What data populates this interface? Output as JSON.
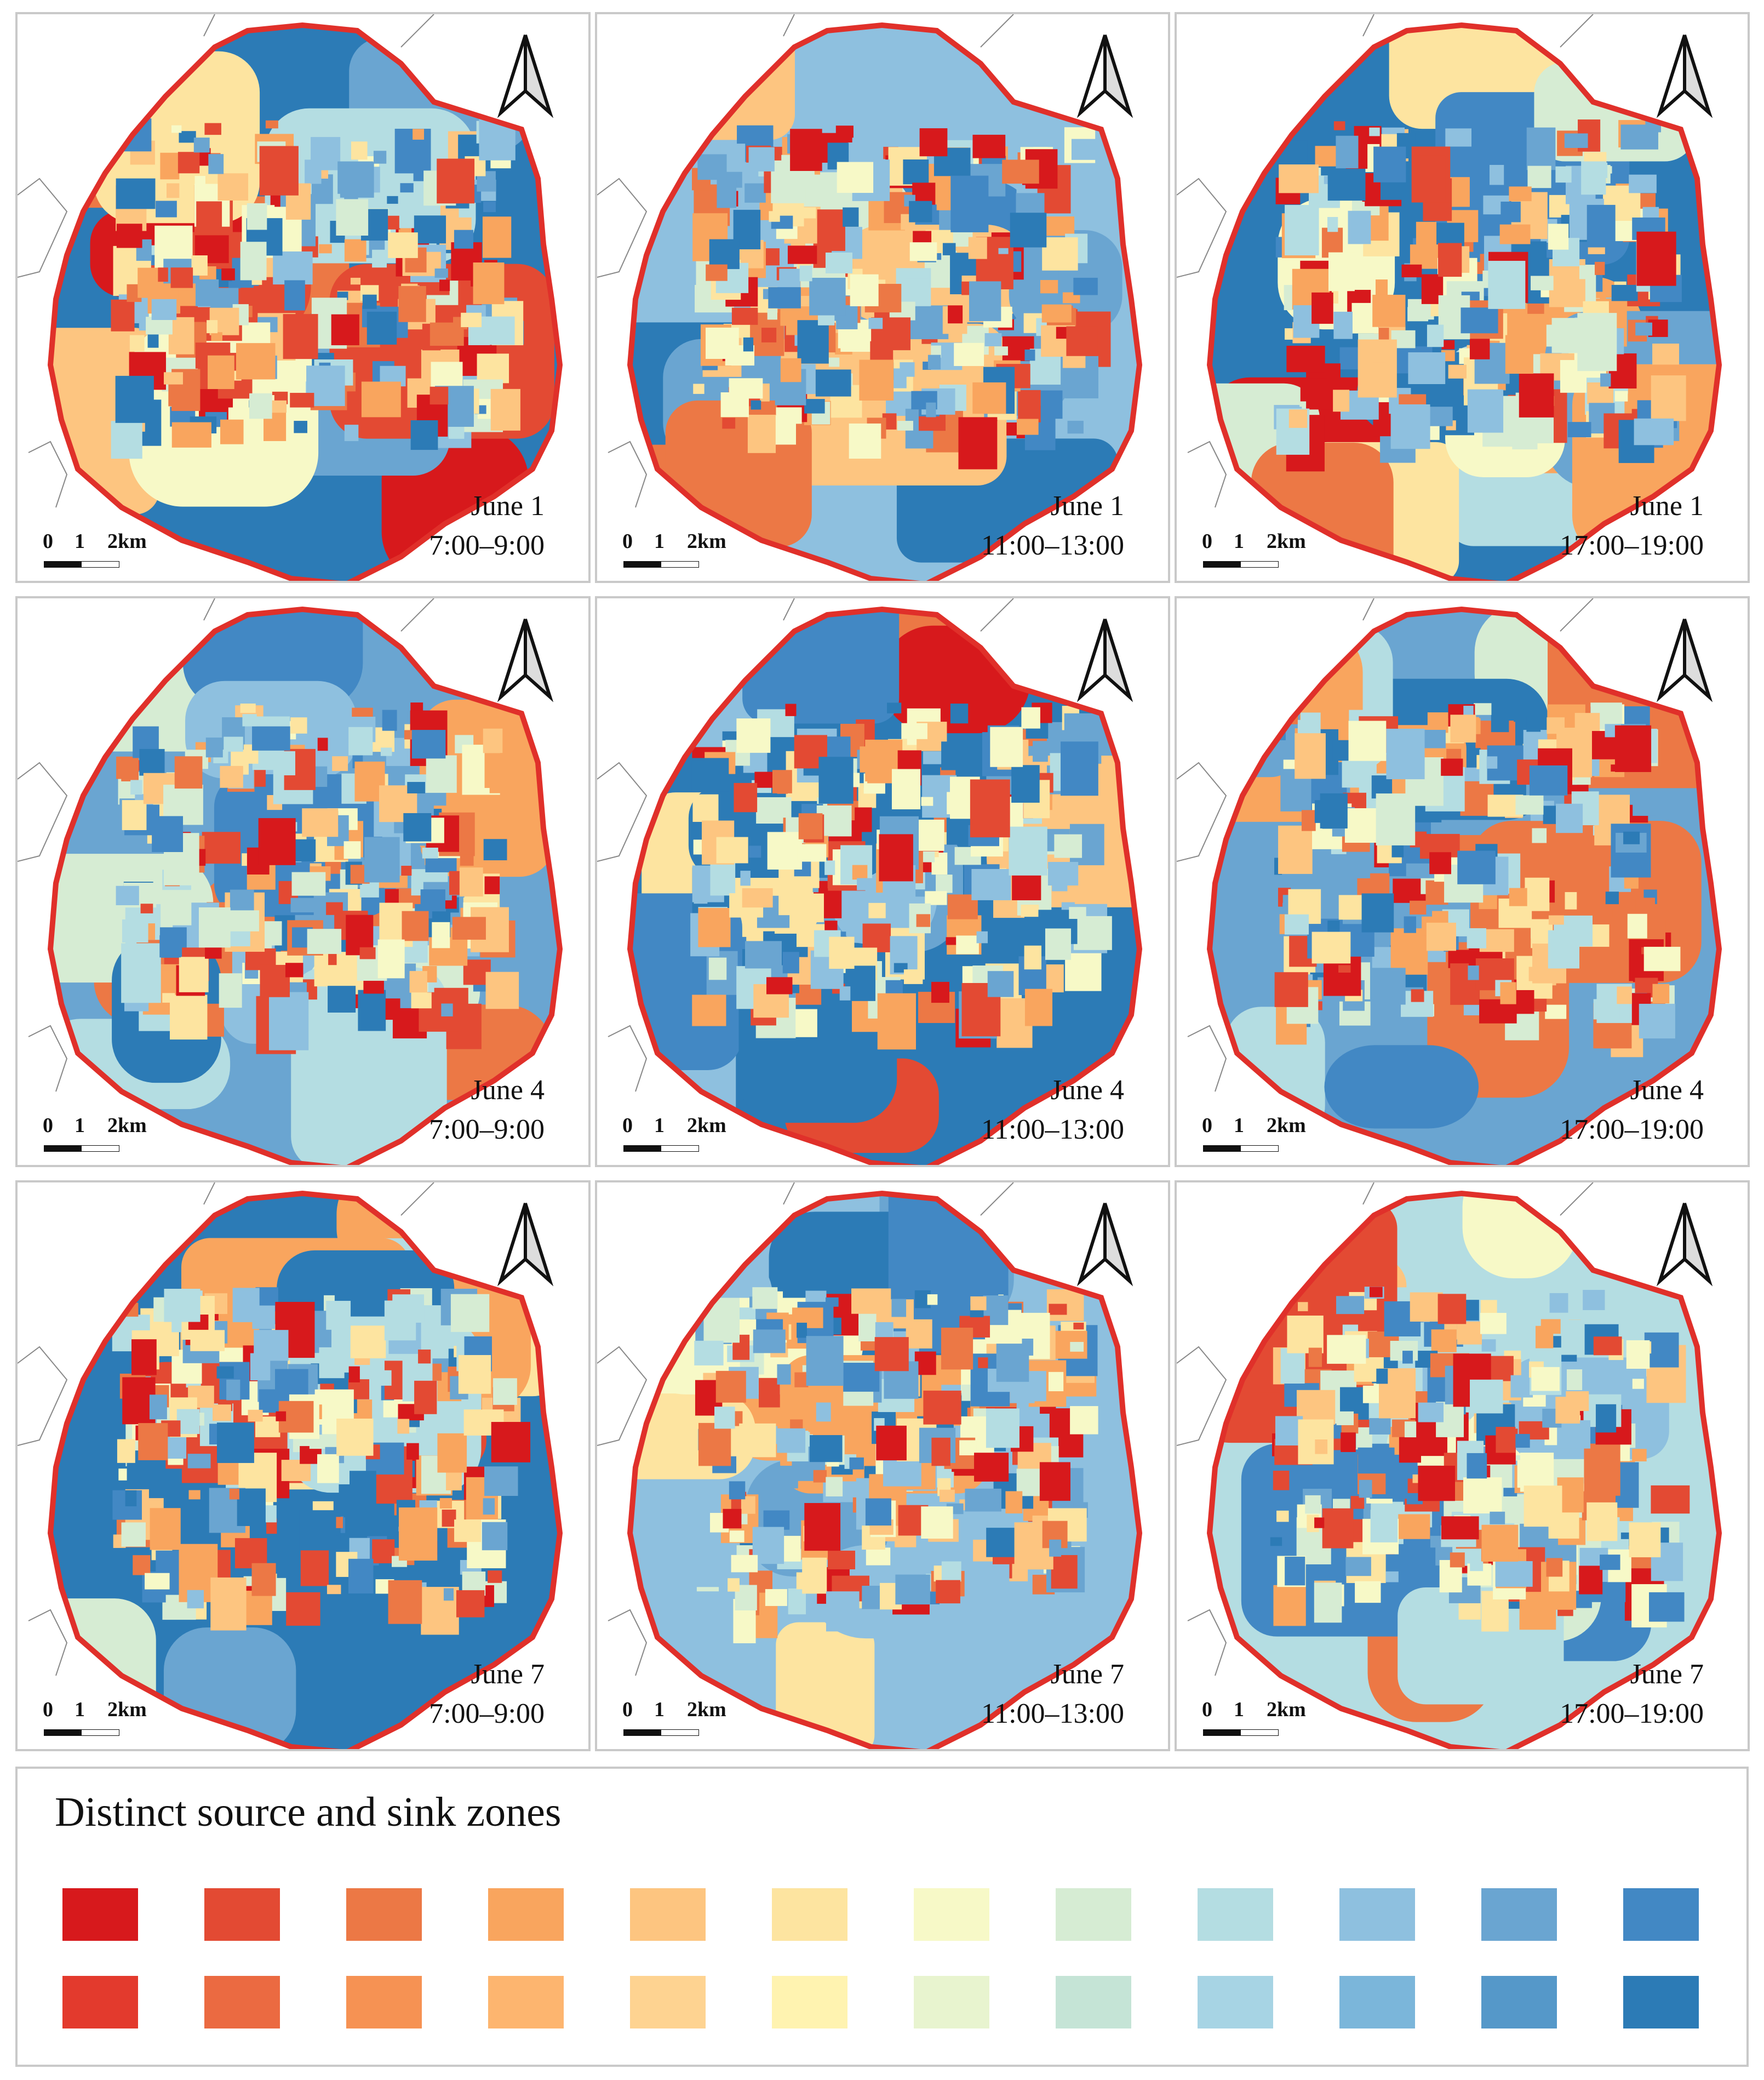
{
  "panels": [
    {
      "date": "June 1",
      "time": "7:00–9:00",
      "seed": 11
    },
    {
      "date": "June 1",
      "time": "11:00–13:00",
      "seed": 23
    },
    {
      "date": "June 1",
      "time": "17:00–19:00",
      "seed": 37
    },
    {
      "date": "June 4",
      "time": "7:00–9:00",
      "seed": 41
    },
    {
      "date": "June 4",
      "time": "11:00–13:00",
      "seed": 53
    },
    {
      "date": "June 4",
      "time": "17:00–19:00",
      "seed": 67
    },
    {
      "date": "June 7",
      "time": "7:00–9:00",
      "seed": 71
    },
    {
      "date": "June 7",
      "time": "11:00–13:00",
      "seed": 83
    },
    {
      "date": "June 7",
      "time": "17:00–19:00",
      "seed": 97
    }
  ],
  "scale_bar": {
    "tick0": "0",
    "tick1": "1",
    "tick2": "2km"
  },
  "legend": {
    "title": "Distinct source and sink zones",
    "row1_colors": [
      "#d7191c",
      "#e34a33",
      "#ec7845",
      "#f9a55e",
      "#fdc580",
      "#fde4a0",
      "#f7f9c7",
      "#d6ecd3",
      "#b4dde2",
      "#8ec0df",
      "#6aa5d1",
      "#4288c4"
    ],
    "row2_colors": [
      "#e33a2d",
      "#eb6a41",
      "#f69253",
      "#fdb56f",
      "#fed391",
      "#fff3b0",
      "#e8f4cf",
      "#c5e4d6",
      "#a7d4e4",
      "#7bb6da",
      "#5598c9",
      "#2c7bb6"
    ]
  },
  "map_palette": [
    "#d7191c",
    "#e34a33",
    "#ec7845",
    "#f9a55e",
    "#fdc580",
    "#fde4a0",
    "#f7f9c7",
    "#d6ecd3",
    "#b4dde2",
    "#8ec0df",
    "#6aa5d1",
    "#4288c4",
    "#2c7bb6"
  ]
}
